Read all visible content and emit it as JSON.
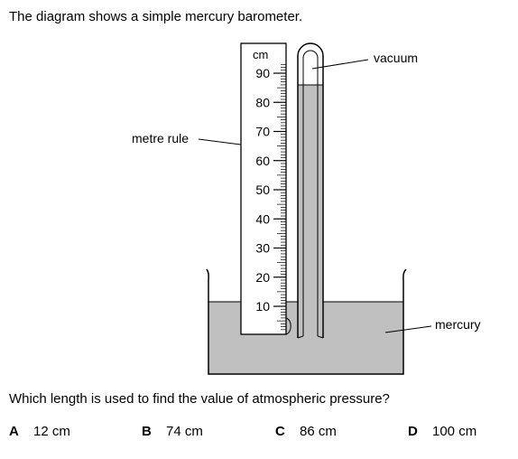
{
  "intro_text": "The diagram shows a simple mercury barometer.",
  "question_text": "Which length is used to find the value of atmospheric pressure?",
  "diagram": {
    "labels": {
      "vacuum": "vacuum",
      "metre_rule": "metre rule",
      "mercury": "mercury"
    },
    "rule_unit": "cm",
    "rule_ticks": [
      "10",
      "20",
      "30",
      "40",
      "50",
      "60",
      "70",
      "80",
      "90"
    ],
    "colors": {
      "mercury": "#c0c0c0",
      "outline": "#000000",
      "rule_face": "#ffffff"
    }
  },
  "options": [
    {
      "letter": "A",
      "value": "12 cm"
    },
    {
      "letter": "B",
      "value": "74 cm"
    },
    {
      "letter": "C",
      "value": "86 cm"
    },
    {
      "letter": "D",
      "value": "100 cm"
    }
  ]
}
